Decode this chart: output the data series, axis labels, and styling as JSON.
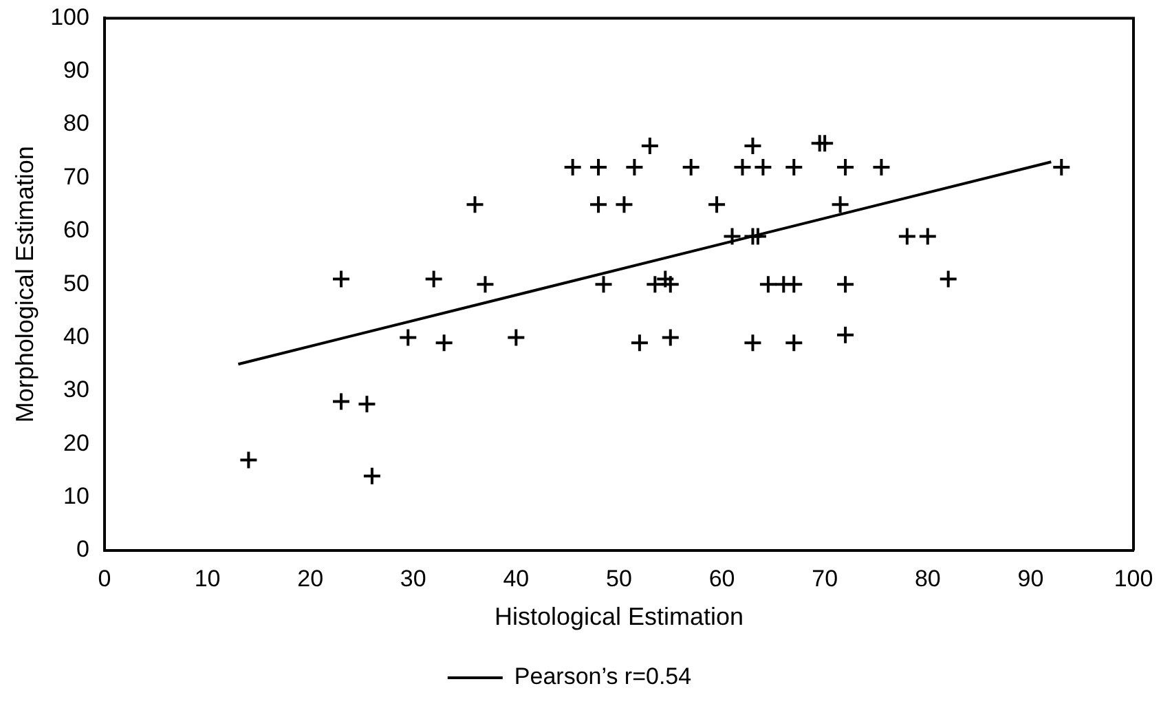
{
  "chart_data": {
    "type": "scatter",
    "xlabel": "Histological Estimation",
    "ylabel": "Morphological Estimation",
    "xlim": [
      0,
      100
    ],
    "ylim": [
      0,
      100
    ],
    "xticks": [
      0,
      10,
      20,
      30,
      40,
      50,
      60,
      70,
      80,
      90,
      100
    ],
    "yticks": [
      0,
      10,
      20,
      30,
      40,
      50,
      60,
      70,
      80,
      90,
      100
    ],
    "grid": false,
    "legend": "bottom",
    "marker": "cross",
    "series": [
      {
        "type": "scatter",
        "color": "#000000",
        "x": [
          14,
          23,
          23,
          25.5,
          26,
          29.5,
          32,
          33,
          36,
          37,
          40,
          45.5,
          48,
          48,
          48.5,
          50.5,
          51.5,
          52,
          53,
          53.5,
          54.5,
          55,
          55,
          57,
          59.5,
          61,
          62,
          63,
          63,
          63.5,
          63,
          64,
          64.5,
          66,
          67,
          67,
          67,
          69.5,
          70,
          71.5,
          72,
          72,
          72,
          75.5,
          78,
          80,
          82,
          93
        ],
        "values": [
          17,
          51,
          28,
          27.5,
          14,
          40,
          51,
          39,
          65,
          50,
          40,
          72,
          72,
          65,
          50,
          65,
          72,
          39,
          76,
          50,
          51,
          50,
          40,
          72,
          65,
          59,
          72,
          76,
          59,
          59,
          39,
          72,
          50,
          50,
          50,
          72,
          39,
          76.5,
          76.5,
          65,
          72,
          50,
          40.5,
          72,
          59,
          59,
          51,
          72
        ]
      },
      {
        "type": "line",
        "name": "Pearson’s r=0.54",
        "color": "#000000",
        "marker": "none",
        "line_style": "solid",
        "x": [
          13,
          92
        ],
        "values": [
          35,
          73
        ]
      }
    ]
  }
}
